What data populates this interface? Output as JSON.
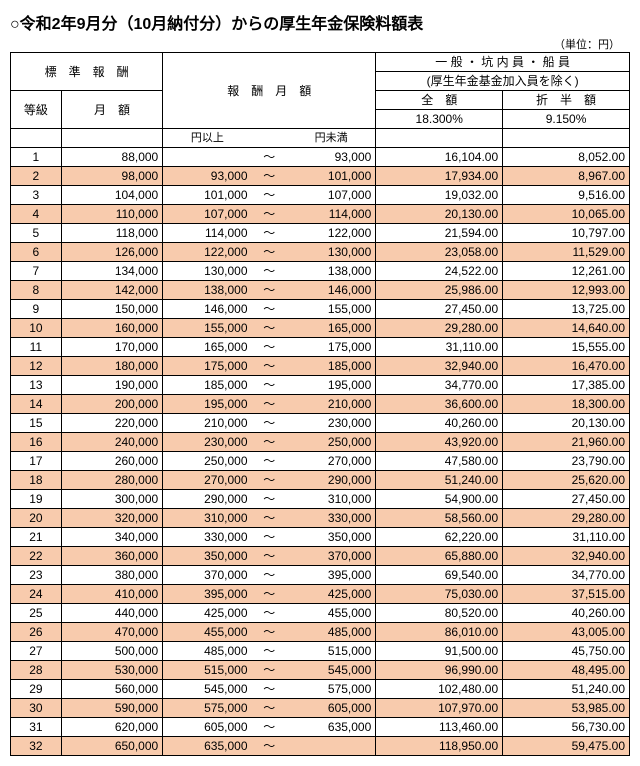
{
  "title": "○令和2年9月分（10月納付分）からの厚生年金保険料額表",
  "unit_label": "（単位：円）",
  "headers": {
    "std_pay": "標　準　報　酬",
    "pay_month": "報　酬　月　額",
    "category": "一 般 ・ 坑 内 員 ・ 船 員",
    "category_sub": "(厚生年金基金加入員を除く)",
    "full": "全　額",
    "half": "折　半　額",
    "full_rate": "18.300%",
    "half_rate": "9.150%",
    "grade": "等級",
    "month_amt": "月　額",
    "from_label": "円以上",
    "to_label": "円未満"
  },
  "rows": [
    {
      "g": 1,
      "m": "88,000",
      "f": "",
      "t": "93,000",
      "full": "16,104.00",
      "half": "8,052.00",
      "s": false
    },
    {
      "g": 2,
      "m": "98,000",
      "f": "93,000",
      "t": "101,000",
      "full": "17,934.00",
      "half": "8,967.00",
      "s": true
    },
    {
      "g": 3,
      "m": "104,000",
      "f": "101,000",
      "t": "107,000",
      "full": "19,032.00",
      "half": "9,516.00",
      "s": false
    },
    {
      "g": 4,
      "m": "110,000",
      "f": "107,000",
      "t": "114,000",
      "full": "20,130.00",
      "half": "10,065.00",
      "s": true
    },
    {
      "g": 5,
      "m": "118,000",
      "f": "114,000",
      "t": "122,000",
      "full": "21,594.00",
      "half": "10,797.00",
      "s": false
    },
    {
      "g": 6,
      "m": "126,000",
      "f": "122,000",
      "t": "130,000",
      "full": "23,058.00",
      "half": "11,529.00",
      "s": true
    },
    {
      "g": 7,
      "m": "134,000",
      "f": "130,000",
      "t": "138,000",
      "full": "24,522.00",
      "half": "12,261.00",
      "s": false
    },
    {
      "g": 8,
      "m": "142,000",
      "f": "138,000",
      "t": "146,000",
      "full": "25,986.00",
      "half": "12,993.00",
      "s": true
    },
    {
      "g": 9,
      "m": "150,000",
      "f": "146,000",
      "t": "155,000",
      "full": "27,450.00",
      "half": "13,725.00",
      "s": false
    },
    {
      "g": 10,
      "m": "160,000",
      "f": "155,000",
      "t": "165,000",
      "full": "29,280.00",
      "half": "14,640.00",
      "s": true
    },
    {
      "g": 11,
      "m": "170,000",
      "f": "165,000",
      "t": "175,000",
      "full": "31,110.00",
      "half": "15,555.00",
      "s": false
    },
    {
      "g": 12,
      "m": "180,000",
      "f": "175,000",
      "t": "185,000",
      "full": "32,940.00",
      "half": "16,470.00",
      "s": true
    },
    {
      "g": 13,
      "m": "190,000",
      "f": "185,000",
      "t": "195,000",
      "full": "34,770.00",
      "half": "17,385.00",
      "s": false
    },
    {
      "g": 14,
      "m": "200,000",
      "f": "195,000",
      "t": "210,000",
      "full": "36,600.00",
      "half": "18,300.00",
      "s": true
    },
    {
      "g": 15,
      "m": "220,000",
      "f": "210,000",
      "t": "230,000",
      "full": "40,260.00",
      "half": "20,130.00",
      "s": false
    },
    {
      "g": 16,
      "m": "240,000",
      "f": "230,000",
      "t": "250,000",
      "full": "43,920.00",
      "half": "21,960.00",
      "s": true
    },
    {
      "g": 17,
      "m": "260,000",
      "f": "250,000",
      "t": "270,000",
      "full": "47,580.00",
      "half": "23,790.00",
      "s": false
    },
    {
      "g": 18,
      "m": "280,000",
      "f": "270,000",
      "t": "290,000",
      "full": "51,240.00",
      "half": "25,620.00",
      "s": true
    },
    {
      "g": 19,
      "m": "300,000",
      "f": "290,000",
      "t": "310,000",
      "full": "54,900.00",
      "half": "27,450.00",
      "s": false
    },
    {
      "g": 20,
      "m": "320,000",
      "f": "310,000",
      "t": "330,000",
      "full": "58,560.00",
      "half": "29,280.00",
      "s": true
    },
    {
      "g": 21,
      "m": "340,000",
      "f": "330,000",
      "t": "350,000",
      "full": "62,220.00",
      "half": "31,110.00",
      "s": false
    },
    {
      "g": 22,
      "m": "360,000",
      "f": "350,000",
      "t": "370,000",
      "full": "65,880.00",
      "half": "32,940.00",
      "s": true
    },
    {
      "g": 23,
      "m": "380,000",
      "f": "370,000",
      "t": "395,000",
      "full": "69,540.00",
      "half": "34,770.00",
      "s": false
    },
    {
      "g": 24,
      "m": "410,000",
      "f": "395,000",
      "t": "425,000",
      "full": "75,030.00",
      "half": "37,515.00",
      "s": true
    },
    {
      "g": 25,
      "m": "440,000",
      "f": "425,000",
      "t": "455,000",
      "full": "80,520.00",
      "half": "40,260.00",
      "s": false
    },
    {
      "g": 26,
      "m": "470,000",
      "f": "455,000",
      "t": "485,000",
      "full": "86,010.00",
      "half": "43,005.00",
      "s": true
    },
    {
      "g": 27,
      "m": "500,000",
      "f": "485,000",
      "t": "515,000",
      "full": "91,500.00",
      "half": "45,750.00",
      "s": false
    },
    {
      "g": 28,
      "m": "530,000",
      "f": "515,000",
      "t": "545,000",
      "full": "96,990.00",
      "half": "48,495.00",
      "s": true
    },
    {
      "g": 29,
      "m": "560,000",
      "f": "545,000",
      "t": "575,000",
      "full": "102,480.00",
      "half": "51,240.00",
      "s": false
    },
    {
      "g": 30,
      "m": "590,000",
      "f": "575,000",
      "t": "605,000",
      "full": "107,970.00",
      "half": "53,985.00",
      "s": true
    },
    {
      "g": 31,
      "m": "620,000",
      "f": "605,000",
      "t": "635,000",
      "full": "113,460.00",
      "half": "56,730.00",
      "s": false
    },
    {
      "g": 32,
      "m": "650,000",
      "f": "635,000",
      "t": "",
      "full": "118,950.00",
      "half": "59,475.00",
      "s": true
    }
  ]
}
